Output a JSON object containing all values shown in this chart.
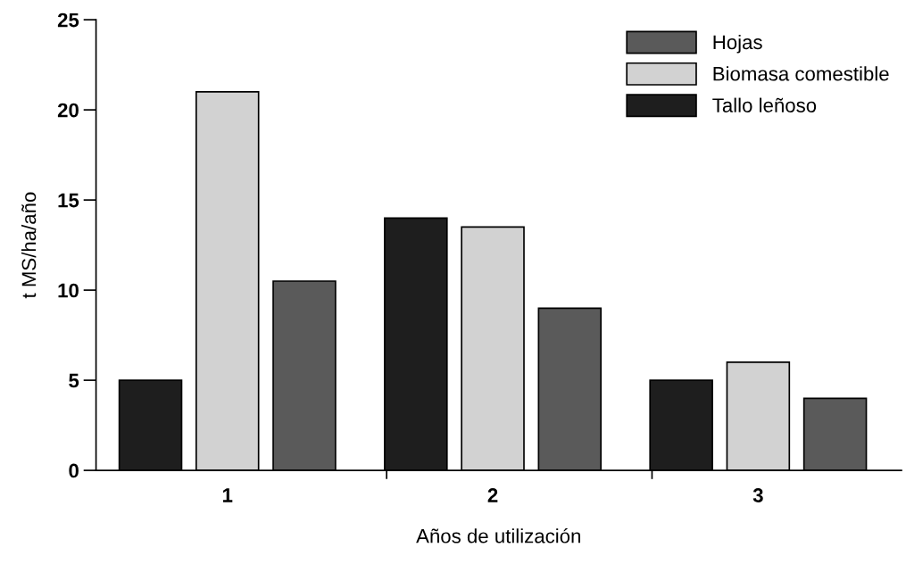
{
  "chart_data": {
    "type": "bar",
    "xlabel": "Años de utilización",
    "ylabel": "t MS/ha/año",
    "categories": [
      "1",
      "2",
      "3"
    ],
    "series": [
      {
        "name": "Hojas",
        "color": "#5a5a5a",
        "values": [
          10.5,
          9,
          4
        ]
      },
      {
        "name": "Biomasa comestible",
        "color": "#d2d2d2",
        "values": [
          21,
          13.5,
          6
        ]
      },
      {
        "name": "Tallo leñoso",
        "color": "#1e1e1e",
        "values": [
          5,
          14,
          5
        ]
      }
    ],
    "ylim": [
      0,
      25
    ],
    "yticks": [
      0,
      5,
      10,
      15,
      20,
      25
    ],
    "grid": false,
    "legend": "top right"
  }
}
